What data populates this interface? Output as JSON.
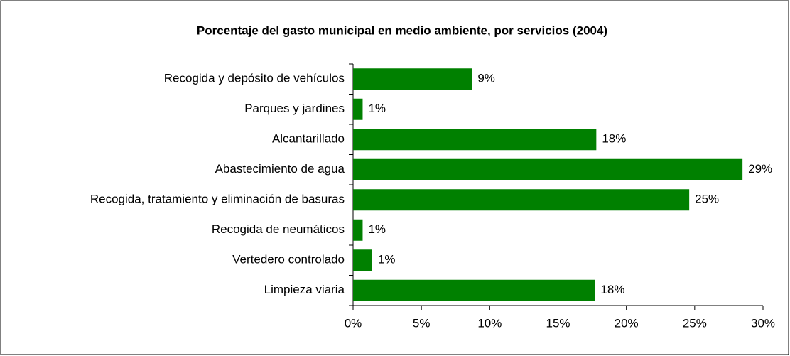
{
  "chart_data": {
    "type": "bar",
    "orientation": "horizontal",
    "title": "Porcentaje del gasto municipal en medio ambiente, por servicios (2004)",
    "categories": [
      "Recogida y depósito de vehículos",
      "Parques y jardines",
      "Alcantarillado",
      "Abastecimiento de agua",
      "Recogida, tratamiento y eliminación de basuras",
      "Recogida de neumáticos",
      "Vertedero controlado",
      "Limpieza viaria"
    ],
    "values": [
      8.7,
      0.7,
      17.8,
      28.5,
      24.6,
      0.7,
      1.4,
      17.7
    ],
    "value_labels": [
      "9%",
      "1%",
      "18%",
      "29%",
      "25%",
      "1%",
      "1%",
      "18%"
    ],
    "color": "#008000",
    "xlim": [
      0,
      30
    ],
    "xticks": [
      {
        "value": 0,
        "label": "0%"
      },
      {
        "value": 5,
        "label": "5%"
      },
      {
        "value": 10,
        "label": "10%"
      },
      {
        "value": 15,
        "label": "15%"
      },
      {
        "value": 20,
        "label": "20%"
      },
      {
        "value": 25,
        "label": "25%"
      },
      {
        "value": 30,
        "label": "30%"
      }
    ],
    "grid": false
  }
}
